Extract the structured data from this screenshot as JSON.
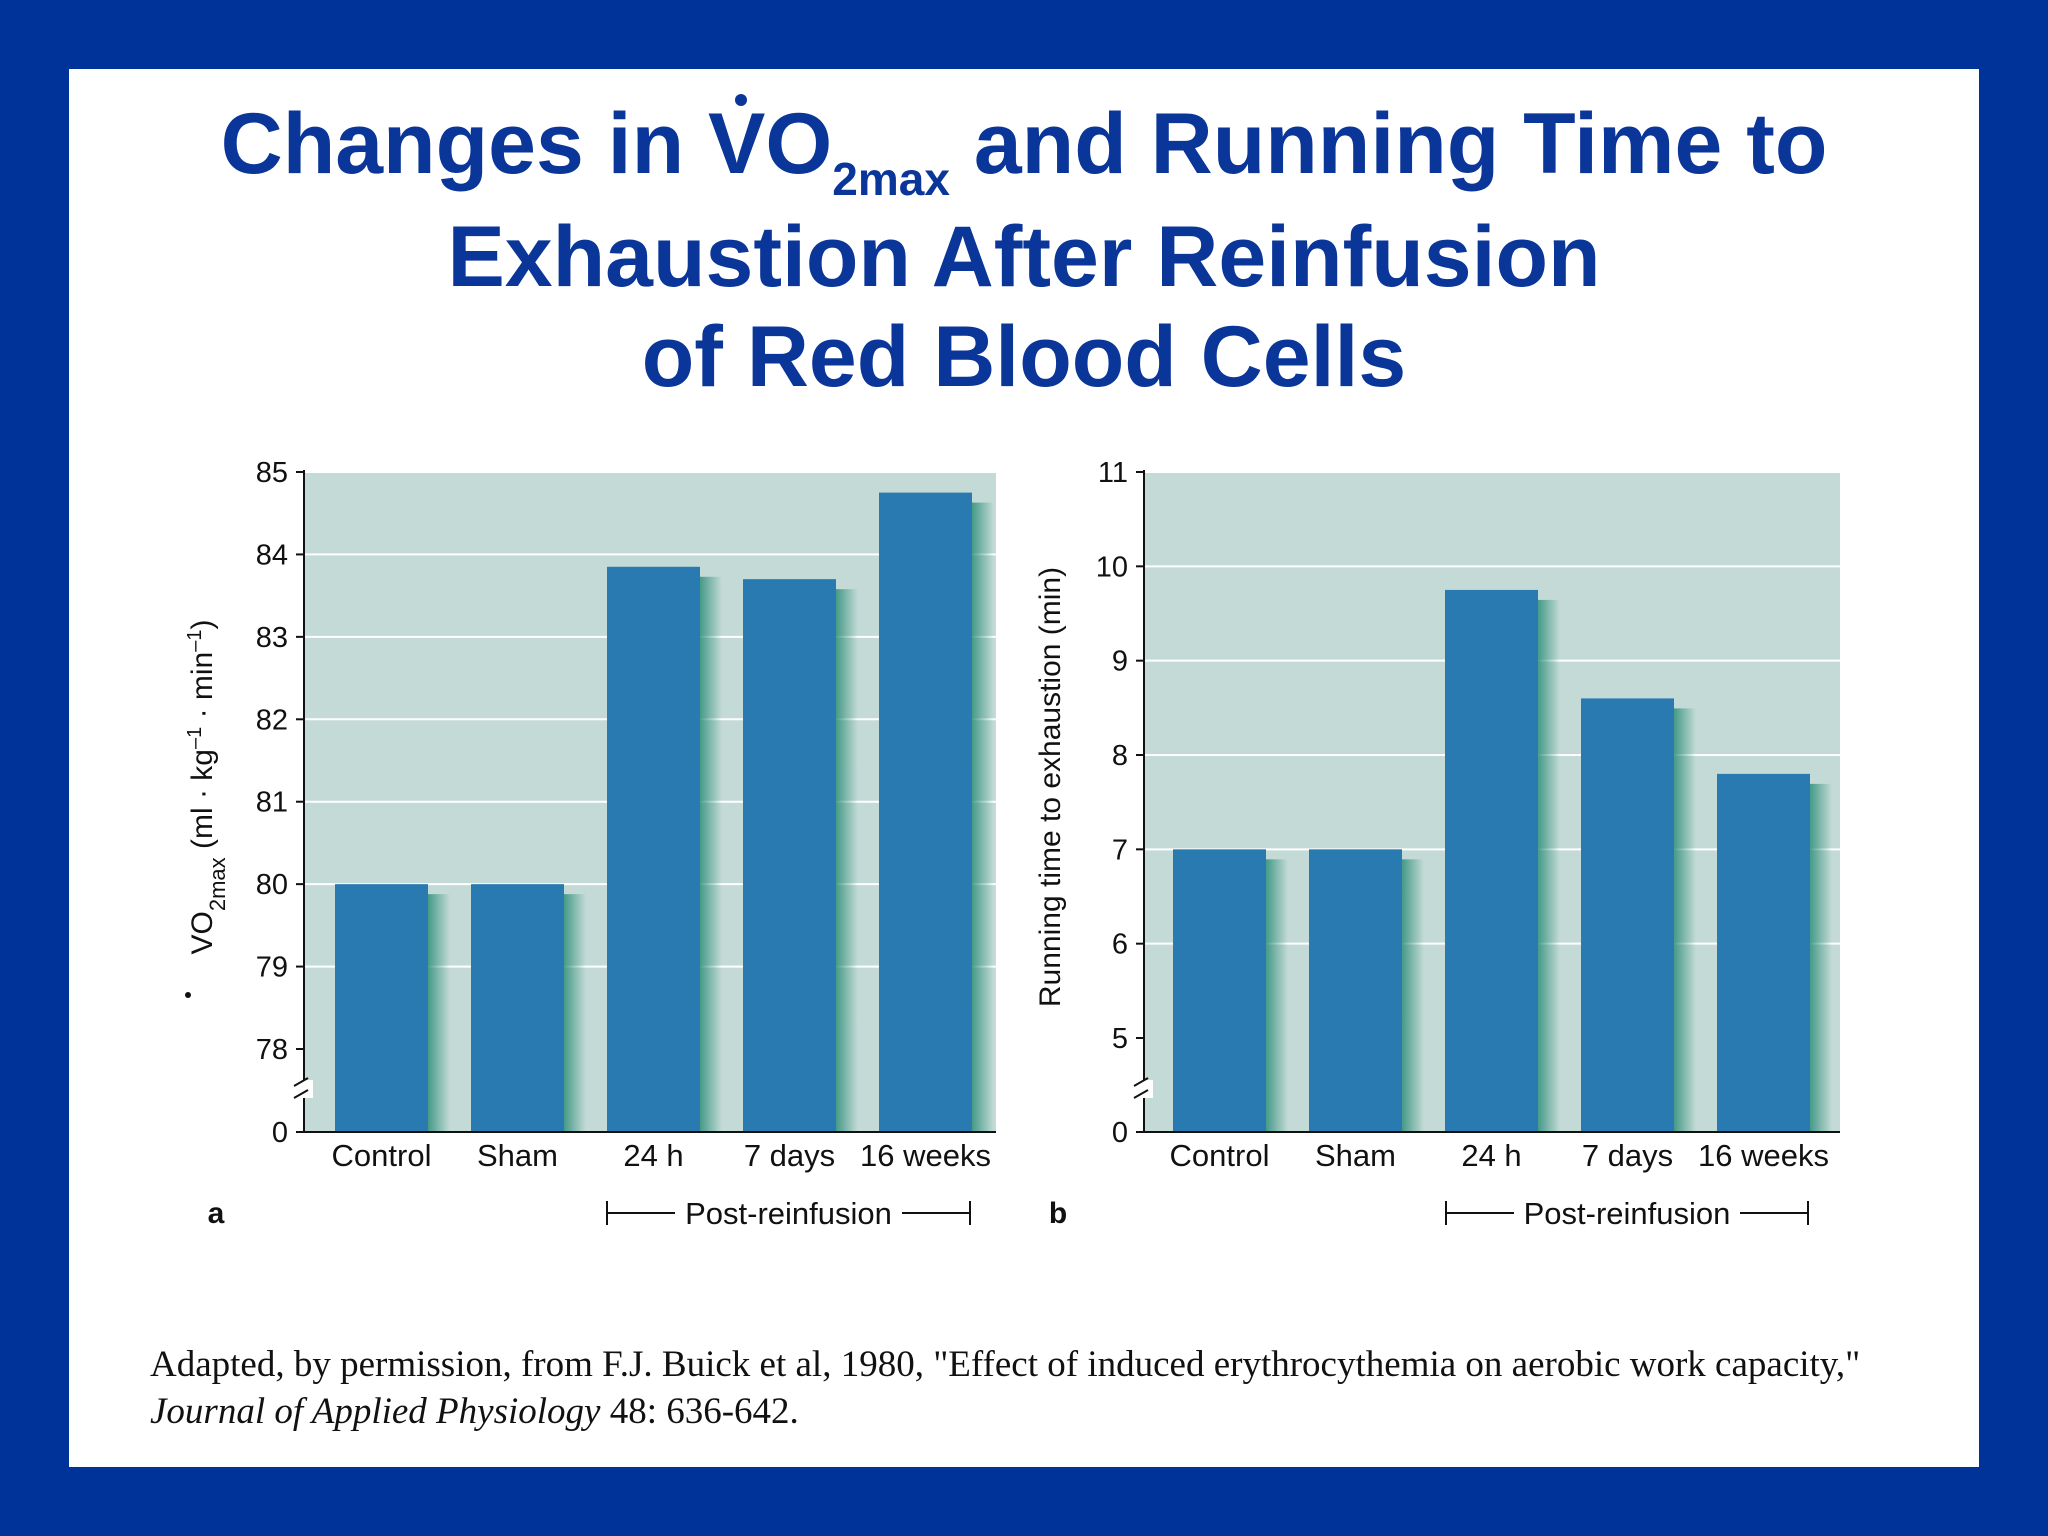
{
  "title": {
    "line1_prefix": "Changes in ",
    "v": "V",
    "o": "O",
    "sub": "2max",
    "line1_suffix": " and Running Time to",
    "line2": "Exhaustion After Reinfusion",
    "line3": "of Red Blood Cells"
  },
  "citation": {
    "text1": "Adapted, by permission, from F.J. Buick et al, 1980, \"Effect of induced erythrocythemia on aerobic work capacity,\" ",
    "journal": "Journal of Applied Physiology",
    "text2": " 48: 636-642."
  },
  "colors": {
    "border": "#00339a",
    "title": "#0a3599",
    "bar": "#2a7ab2",
    "plot_bg": "#c4dad6"
  },
  "chart_data": [
    {
      "type": "bar",
      "panel_label": "a",
      "categories": [
        "Control",
        "Sham",
        "24 h",
        "7 days",
        "16 weeks"
      ],
      "values": [
        80.0,
        80.0,
        83.85,
        83.7,
        84.75
      ],
      "ylabel_parts": {
        "v": "V",
        "o": "O",
        "sub": "2max",
        "rest": " (ml · kg",
        "sup1": "–1",
        "mid": " · min",
        "sup2": "–1",
        "end": ")"
      },
      "yticks": [
        "0",
        "78",
        "79",
        "80",
        "81",
        "82",
        "83",
        "84",
        "85"
      ],
      "ylim": [
        78,
        85
      ],
      "axis_break": true,
      "group_label": "Post-reinfusion",
      "grid": true
    },
    {
      "type": "bar",
      "panel_label": "b",
      "categories": [
        "Control",
        "Sham",
        "24 h",
        "7 days",
        "16 weeks"
      ],
      "values": [
        7.0,
        7.0,
        9.75,
        8.6,
        7.8
      ],
      "ylabel": "Running time to exhaustion (min)",
      "yticks": [
        "0",
        "5",
        "6",
        "7",
        "8",
        "9",
        "10",
        "11"
      ],
      "ylim": [
        5,
        11
      ],
      "axis_break": true,
      "group_label": "Post-reinfusion",
      "grid": true
    }
  ]
}
